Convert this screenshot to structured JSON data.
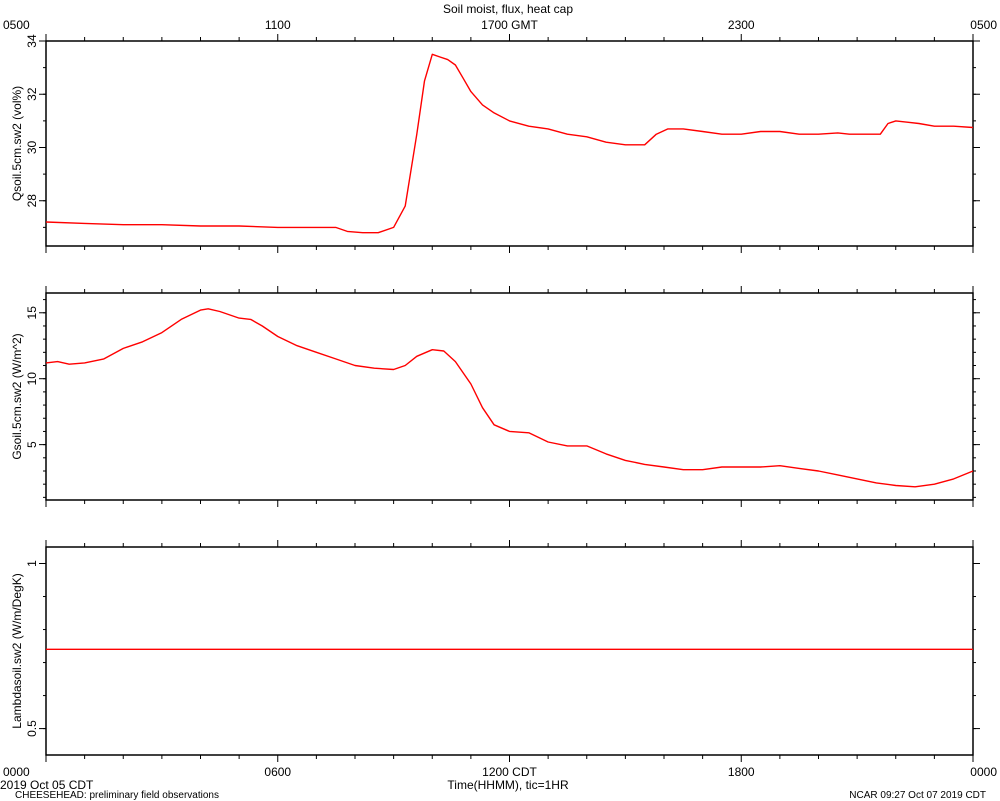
{
  "figure": {
    "title": "Soil moist, flux, heat cap",
    "bottom_left_date": "2019 Oct 05 CDT",
    "footer_left": "CHEESEHEAD: preliminary field observations",
    "footer_right": "NCAR 09:27 Oct 07 2019 CDT",
    "x_axis_bottom_label": "Time(HHMM), tic=1HR"
  },
  "colors": {
    "series": "#ff0000",
    "axis": "#000000",
    "background": "#ffffff"
  },
  "chart_data": [
    {
      "type": "line",
      "title": "Soil moist, flux, heat cap",
      "ylabel": "Qsoil.5cm.sw2 (vol%)",
      "xlabel": "",
      "x_unit": "hours since 0000 CDT",
      "xlim": [
        0,
        24
      ],
      "ylim": [
        26.3,
        34
      ],
      "yticks": [
        28,
        30,
        32,
        34
      ],
      "top_xtick_labels": [
        "0500",
        "1100",
        "1700 GMT",
        "2300",
        "0500"
      ],
      "top_xtick_hours": [
        0,
        6,
        12,
        18,
        24
      ],
      "grid": false,
      "series": [
        {
          "x": [
            0,
            1,
            2,
            3,
            4,
            5,
            6,
            7,
            7.5,
            7.8,
            8.2,
            8.6,
            9.0,
            9.3,
            9.6,
            9.8,
            10.0,
            10.2,
            10.4,
            10.6,
            10.8,
            11.0,
            11.3,
            11.6,
            12.0,
            12.5,
            13.0,
            13.5,
            14.0,
            14.5,
            15.0,
            15.5,
            15.8,
            16.1,
            16.5,
            17.0,
            17.5,
            18.0,
            18.5,
            19.0,
            19.5,
            20.0,
            20.5,
            20.8,
            21.0,
            21.3,
            21.6,
            21.8,
            22.0,
            22.3,
            22.6,
            23.0,
            23.5,
            24.0
          ],
          "values": [
            27.2,
            27.15,
            27.1,
            27.1,
            27.05,
            27.05,
            27.0,
            27.0,
            27.0,
            26.85,
            26.8,
            26.8,
            27.0,
            27.8,
            30.5,
            32.5,
            33.5,
            33.4,
            33.3,
            33.1,
            32.6,
            32.1,
            31.6,
            31.3,
            31.0,
            30.8,
            30.7,
            30.5,
            30.4,
            30.2,
            30.1,
            30.1,
            30.5,
            30.7,
            30.7,
            30.6,
            30.5,
            30.5,
            30.6,
            30.6,
            30.5,
            30.5,
            30.55,
            30.5,
            30.5,
            30.5,
            30.5,
            30.9,
            31.0,
            30.95,
            30.9,
            30.8,
            30.8,
            30.75
          ]
        }
      ]
    },
    {
      "type": "line",
      "ylabel": "Gsoil.5cm.sw2 (W/m^2)",
      "xlabel": "",
      "x_unit": "hours since 0000 CDT",
      "xlim": [
        0,
        24
      ],
      "ylim": [
        0.8,
        16.5
      ],
      "yticks": [
        5,
        10,
        15
      ],
      "grid": false,
      "series": [
        {
          "x": [
            0,
            0.3,
            0.6,
            1.0,
            1.5,
            2.0,
            2.5,
            3.0,
            3.5,
            4.0,
            4.2,
            4.5,
            5.0,
            5.3,
            5.6,
            6.0,
            6.5,
            7.0,
            7.5,
            8.0,
            8.5,
            9.0,
            9.3,
            9.6,
            10.0,
            10.3,
            10.6,
            11.0,
            11.3,
            11.6,
            12.0,
            12.5,
            13.0,
            13.5,
            14.0,
            14.5,
            15.0,
            15.5,
            16.0,
            16.5,
            17.0,
            17.5,
            18.0,
            18.5,
            19.0,
            19.5,
            20.0,
            20.5,
            21.0,
            21.5,
            22.0,
            22.5,
            23.0,
            23.5,
            24.0
          ],
          "values": [
            11.2,
            11.3,
            11.1,
            11.2,
            11.5,
            12.3,
            12.8,
            13.5,
            14.5,
            15.2,
            15.3,
            15.1,
            14.6,
            14.5,
            14.0,
            13.2,
            12.5,
            12.0,
            11.5,
            11.0,
            10.8,
            10.7,
            11.0,
            11.7,
            12.2,
            12.1,
            11.3,
            9.6,
            7.8,
            6.5,
            6.0,
            5.9,
            5.2,
            4.9,
            4.9,
            4.3,
            3.8,
            3.5,
            3.3,
            3.1,
            3.1,
            3.3,
            3.3,
            3.3,
            3.4,
            3.2,
            3.0,
            2.7,
            2.4,
            2.1,
            1.9,
            1.8,
            2.0,
            2.4,
            3.0
          ]
        }
      ]
    },
    {
      "type": "line",
      "ylabel": "Lambdasoil.sw2 (W/m/DegK)",
      "xlabel": "Time(HHMM), tic=1HR",
      "x_unit": "hours since 0000 CDT",
      "xlim": [
        0,
        24
      ],
      "ylim": [
        0.42,
        1.05
      ],
      "yticks": [
        0.5,
        1.0
      ],
      "xtick_labels": [
        "0000",
        "0600",
        "1200 CDT",
        "1800",
        "0000"
      ],
      "xtick_hours": [
        0,
        6,
        12,
        18,
        24
      ],
      "grid": false,
      "series": [
        {
          "x": [
            0,
            24
          ],
          "values": [
            0.74,
            0.74
          ]
        }
      ]
    }
  ]
}
